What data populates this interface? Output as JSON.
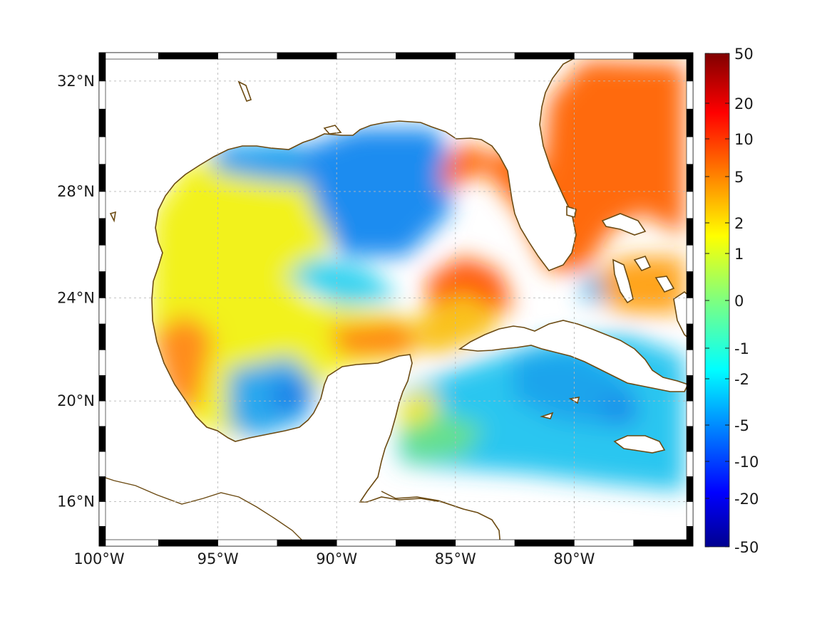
{
  "map": {
    "projection": "mercator",
    "lon_range": [
      -100,
      -75
    ],
    "lat_range": [
      14.2,
      33
    ],
    "lon_ticks": [
      {
        "lon": -100,
        "label": "100°W"
      },
      {
        "lon": -95,
        "label": "95°W"
      },
      {
        "lon": -90,
        "label": "90°W"
      },
      {
        "lon": -85,
        "label": "85°W"
      },
      {
        "lon": -80,
        "label": "80°W"
      }
    ],
    "lat_ticks": [
      {
        "lat": 32,
        "label": "32°N"
      },
      {
        "lat": 28,
        "label": "28°N"
      },
      {
        "lat": 24,
        "label": "24°N"
      },
      {
        "lat": 20,
        "label": "20°N"
      },
      {
        "lat": 16,
        "label": "16°N"
      }
    ],
    "grid": true,
    "coastline_color": "#6b4a12",
    "land_color": "#ffffff",
    "frame": "black-white-alternating"
  },
  "colorbar": {
    "position": "right",
    "colormap": "jet",
    "tick_labels": [
      "50",
      "20",
      "10",
      "5",
      "2",
      "1",
      "0",
      "-1",
      "-2",
      "-5",
      "-10",
      "-20",
      "-50"
    ]
  }
}
